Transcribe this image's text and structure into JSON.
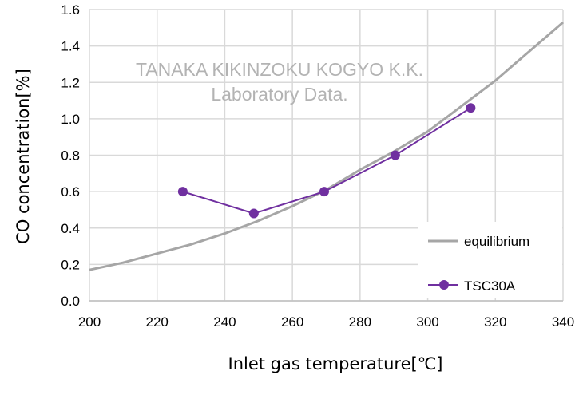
{
  "chart_data": {
    "type": "line",
    "title": "",
    "xlabel": "Inlet gas temperature[℃]",
    "ylabel": "CO concentration[%]",
    "xlim": [
      200,
      340
    ],
    "ylim": [
      0,
      1.6
    ],
    "xticks": [
      200,
      220,
      240,
      260,
      280,
      300,
      320,
      340
    ],
    "yticks": [
      "0.0",
      "0.2",
      "0.4",
      "0.6",
      "0.8",
      "1.0",
      "1.2",
      "1.4",
      "1.6"
    ],
    "grid": true,
    "legend_position": "bottom-right",
    "watermark": [
      "TANAKA KIKINZOKU KOGYO K.K.",
      "Laboratory Data."
    ],
    "series": [
      {
        "name": "equilibrium",
        "color": "#a6a6a6",
        "markers": false,
        "x": [
          200,
          210,
          220,
          230,
          240,
          250,
          260,
          270,
          280,
          290,
          300,
          310,
          320,
          330,
          340
        ],
        "y": [
          0.17,
          0.21,
          0.26,
          0.31,
          0.37,
          0.44,
          0.52,
          0.61,
          0.72,
          0.82,
          0.93,
          1.07,
          1.21,
          1.37,
          1.53
        ]
      },
      {
        "name": "TSC30A",
        "color": "#7030a0",
        "markers": true,
        "x": [
          227.6,
          248.6,
          269.4,
          290.4,
          312.7
        ],
        "y": [
          0.6,
          0.48,
          0.6,
          0.8,
          1.06
        ]
      }
    ]
  }
}
